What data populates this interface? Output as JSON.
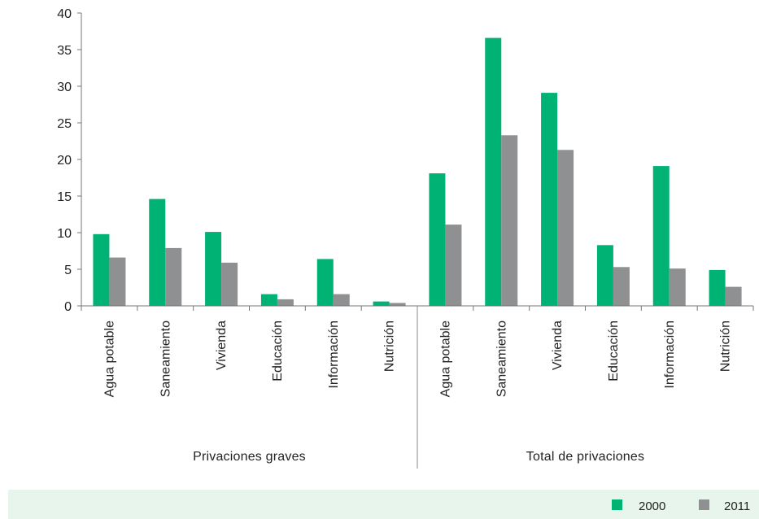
{
  "chart_data": {
    "type": "bar",
    "groups": [
      {
        "label": "Privaciones graves",
        "categories": [
          "Agua potable",
          "Saneamiento",
          "Vivienda",
          "Educación",
          "Información",
          "Nutrición"
        ],
        "values_2000": [
          9.8,
          14.6,
          10.1,
          1.6,
          6.4,
          0.6
        ],
        "values_2011": [
          6.6,
          7.9,
          5.9,
          0.9,
          1.6,
          0.4
        ]
      },
      {
        "label": "Total de privaciones",
        "categories": [
          "Agua potable",
          "Saneamiento",
          "Vivienda",
          "Educación",
          "Información",
          "Nutrición"
        ],
        "values_2000": [
          18.1,
          36.6,
          29.1,
          8.3,
          19.1,
          4.9
        ],
        "values_2011": [
          11.1,
          23.3,
          21.3,
          5.3,
          5.1,
          2.6
        ]
      }
    ],
    "series": [
      {
        "name": "2000",
        "color": "#00b274"
      },
      {
        "name": "2011",
        "color": "#8e9092"
      }
    ],
    "ylim": [
      0,
      40
    ],
    "yticks": [
      "0",
      "5",
      "10",
      "15",
      "20",
      "25",
      "30",
      "35",
      "40"
    ],
    "grid": false,
    "legend_position": "bottom-right"
  }
}
